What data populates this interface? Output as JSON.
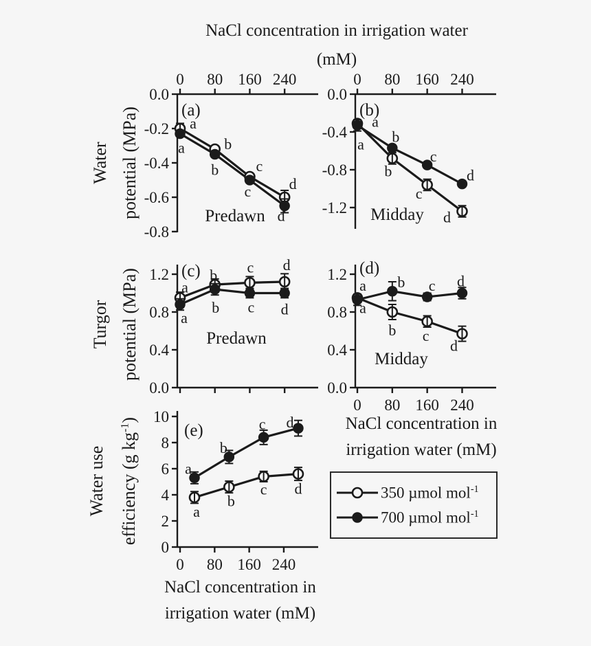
{
  "figure": {
    "bg": "#f6f6f6",
    "ink": "#1b1b1b",
    "top_axis_title": {
      "line1": "NaCl concentration in irrigation water",
      "line2": "(mM)"
    },
    "row1_ylabel": {
      "line1": "Water",
      "line2": "potential (MPa)"
    },
    "row2_ylabel": {
      "line1": "Turgor",
      "line2": "potential (MPa)"
    },
    "row3_ylabel": {
      "line1": "Water use",
      "line2_pre": "efficiency (g kg",
      "sup": "-1",
      "line2_post": ")"
    },
    "xlabel_right": {
      "line1": "NaCl concentration in",
      "line2": "irrigation water (mM)"
    },
    "xlabel_bottom": {
      "line1": "NaCl concentration in",
      "line2": "irrigation water (mM)"
    }
  },
  "legend": {
    "entries": [
      {
        "marker": "open-circle",
        "label_pre": "350 µmol mol",
        "label_sup": "-1"
      },
      {
        "marker": "filled-circle",
        "label_pre": "700 µmol mol",
        "label_sup": "-1"
      }
    ]
  },
  "chart_data": [
    {
      "id": "a",
      "type": "line",
      "panel_label": "(a)",
      "inner_label": "Predawn",
      "ylabel": "Water potential (MPa)",
      "xlabel": "NaCl concentration in irrigation water (mM)",
      "xlim": [
        0,
        315
      ],
      "ylim": [
        -0.8,
        0.0
      ],
      "x_ticks": [
        0,
        80,
        160,
        240
      ],
      "x_tick_labels": [
        "0",
        "80",
        "160",
        "240"
      ],
      "y_ticks": [
        0.0,
        -0.2,
        -0.4,
        -0.6,
        -0.8
      ],
      "y_tick_labels": [
        "0.0",
        "-0.2",
        "-0.4",
        "-0.6",
        "-0.8"
      ],
      "series": [
        {
          "name": "350",
          "marker": "open",
          "x": [
            0,
            80,
            160,
            240
          ],
          "y": [
            -0.2,
            -0.32,
            -0.48,
            -0.6
          ],
          "err": [
            0.03,
            0,
            0,
            0.04
          ],
          "letters": [
            {
              "t": "a",
              "dx": 19,
              "dy": 0
            },
            {
              "t": "b",
              "dx": 19,
              "dy": 0
            },
            {
              "t": "c",
              "dx": 14,
              "dy": -8
            },
            {
              "t": "d",
              "dx": 12,
              "dy": -12
            }
          ]
        },
        {
          "name": "700",
          "marker": "filled",
          "x": [
            0,
            80,
            160,
            240
          ],
          "y": [
            -0.23,
            -0.35,
            -0.5,
            -0.65
          ],
          "err": [
            0,
            0,
            0,
            0.04
          ],
          "letters": [
            {
              "t": "a",
              "dx": 2,
              "dy": 28
            },
            {
              "t": "b",
              "dx": 0,
              "dy": 30
            },
            {
              "t": "c",
              "dx": -3,
              "dy": 24
            },
            {
              "t": "d",
              "dx": -5,
              "dy": 22
            }
          ]
        }
      ]
    },
    {
      "id": "b",
      "type": "line",
      "panel_label": "(b)",
      "inner_label": "Midday",
      "ylabel": "Water potential (MPa)",
      "xlabel": "NaCl concentration in irrigation water (mM)",
      "xlim": [
        0,
        318
      ],
      "ylim": [
        -1.42,
        0.0
      ],
      "x_ticks": [
        0,
        80,
        160,
        240
      ],
      "x_tick_labels": [
        "0",
        "80",
        "160",
        "240"
      ],
      "y_ticks": [
        0.0,
        -0.4,
        -0.8,
        -1.2
      ],
      "y_tick_labels": [
        "0.0",
        "-0.4",
        "-0.8",
        "-1.2"
      ],
      "series": [
        {
          "name": "350",
          "marker": "open",
          "x": [
            0,
            80,
            160,
            240
          ],
          "y": [
            -0.31,
            -0.68,
            -0.96,
            -1.24
          ],
          "err": [
            0,
            0.06,
            0.06,
            0.06
          ],
          "letters": [
            {
              "t": "a",
              "dx": 5,
              "dy": 38
            },
            {
              "t": "b",
              "dx": -6,
              "dy": 26
            },
            {
              "t": "c",
              "dx": -12,
              "dy": 20
            },
            {
              "t": "d",
              "dx": -22,
              "dy": 16
            }
          ]
        },
        {
          "name": "700",
          "marker": "filled",
          "x": [
            0,
            80,
            160,
            240
          ],
          "y": [
            -0.33,
            -0.57,
            -0.75,
            -0.95
          ],
          "err": [
            0.06,
            0,
            0,
            0
          ],
          "letters": [
            {
              "t": "a",
              "dx": 26,
              "dy": 2
            },
            {
              "t": "b",
              "dx": 5,
              "dy": -9
            },
            {
              "t": "c",
              "dx": 9,
              "dy": -5
            },
            {
              "t": "d",
              "dx": 12,
              "dy": -5
            }
          ]
        }
      ]
    },
    {
      "id": "c",
      "type": "line",
      "panel_label": "(c)",
      "inner_label": "Predawn",
      "ylabel": "Turgor potential (MPa)",
      "xlabel": "NaCl concentration in irrigation water (mM)",
      "xlim": [
        0,
        315
      ],
      "ylim": [
        0.0,
        1.3
      ],
      "x_ticks": [
        0,
        80,
        160,
        240
      ],
      "x_tick_labels": [],
      "y_ticks": [
        1.2,
        0.8,
        0.4,
        0.0
      ],
      "y_tick_labels": [
        "1.2",
        "0.8",
        "0.4",
        "0.0"
      ],
      "series": [
        {
          "name": "350",
          "marker": "open",
          "x": [
            0,
            80,
            160,
            240
          ],
          "y": [
            0.95,
            1.09,
            1.11,
            1.12
          ],
          "err": [
            0.06,
            0.06,
            0.065,
            0.085
          ],
          "letters": [
            {
              "t": "a",
              "dx": 7,
              "dy": -8
            },
            {
              "t": "b",
              "dx": -2,
              "dy": -6
            },
            {
              "t": "c",
              "dx": 1,
              "dy": -15
            },
            {
              "t": "d",
              "dx": 3,
              "dy": -17
            }
          ]
        },
        {
          "name": "700",
          "marker": "filled",
          "x": [
            0,
            80,
            160,
            240
          ],
          "y": [
            0.88,
            1.04,
            1.0,
            1.0
          ],
          "err": [
            0.06,
            0.06,
            0.05,
            0.05
          ],
          "letters": [
            {
              "t": "a",
              "dx": 6,
              "dy": 27
            },
            {
              "t": "b",
              "dx": 1,
              "dy": 34
            },
            {
              "t": "c",
              "dx": 2,
              "dy": 28
            },
            {
              "t": "d",
              "dx": 0,
              "dy": 31
            }
          ]
        }
      ]
    },
    {
      "id": "d",
      "type": "line",
      "panel_label": "(d)",
      "inner_label": "Midday",
      "ylabel": "Turgor potential (MPa)",
      "xlabel": "NaCl concentration in irrigation water (mM)",
      "xlim": [
        0,
        318
      ],
      "ylim": [
        0.0,
        1.3
      ],
      "x_ticks": [
        0,
        80,
        160,
        240
      ],
      "x_tick_labels": [
        "0",
        "80",
        "160",
        "240"
      ],
      "y_ticks": [
        1.2,
        0.8,
        0.4,
        0.0
      ],
      "y_tick_labels": [
        "1.2",
        "0.8",
        "0.4",
        "0.0"
      ],
      "series": [
        {
          "name": "350",
          "marker": "open",
          "x": [
            0,
            80,
            160,
            240
          ],
          "y": [
            0.95,
            0.8,
            0.7,
            0.57
          ],
          "err": [
            0,
            0.08,
            0.06,
            0.08
          ],
          "letters": [
            {
              "t": "a",
              "dx": 8,
              "dy": 22
            },
            {
              "t": "b",
              "dx": 0,
              "dy": 34
            },
            {
              "t": "c",
              "dx": -2,
              "dy": 28
            },
            {
              "t": "d",
              "dx": -12,
              "dy": 25
            }
          ]
        },
        {
          "name": "700",
          "marker": "filled",
          "x": [
            0,
            80,
            160,
            240
          ],
          "y": [
            0.93,
            1.02,
            0.96,
            1.0
          ],
          "err": [
            0.06,
            0.1,
            0.04,
            0.06
          ],
          "letters": [
            {
              "t": "a",
              "dx": 8,
              "dy": -13
            },
            {
              "t": "b",
              "dx": 13,
              "dy": -6
            },
            {
              "t": "c",
              "dx": 7,
              "dy": -9
            },
            {
              "t": "d",
              "dx": -2,
              "dy": -10
            }
          ]
        }
      ]
    },
    {
      "id": "e",
      "type": "line",
      "panel_label": "(e)",
      "inner_label": "",
      "ylabel": "Water use efficiency (g kg-1)",
      "xlabel": "NaCl concentration in irrigation water (mM)",
      "xlim": [
        0,
        320
      ],
      "ylim": [
        0,
        10.4
      ],
      "x_ticks": [
        0,
        80,
        160,
        240
      ],
      "x_tick_labels": [
        "0",
        "80",
        "160",
        "240"
      ],
      "y_ticks": [
        10,
        8,
        6,
        4,
        2,
        0
      ],
      "y_tick_labels": [
        "10",
        "8",
        "6",
        "4",
        "2",
        "0"
      ],
      "series": [
        {
          "name": "350",
          "marker": "open",
          "x": [
            0,
            80,
            160,
            240
          ],
          "y": [
            3.8,
            4.6,
            5.4,
            5.6
          ],
          "err": [
            0.45,
            0.45,
            0.4,
            0.5
          ],
          "letters": [
            {
              "t": "a",
              "dx": 3,
              "dy": 28
            },
            {
              "t": "b",
              "dx": 3,
              "dy": 28
            },
            {
              "t": "c",
              "dx": 0,
              "dy": 26
            },
            {
              "t": "d",
              "dx": 0,
              "dy": 29
            }
          ]
        },
        {
          "name": "700",
          "marker": "filled",
          "x": [
            0,
            80,
            160,
            240
          ],
          "y": [
            5.3,
            6.9,
            8.4,
            9.1
          ],
          "err": [
            0.45,
            0.5,
            0.55,
            0.6
          ],
          "letters": [
            {
              "t": "a",
              "dx": -9,
              "dy": -6
            },
            {
              "t": "b",
              "dx": -8,
              "dy": -6
            },
            {
              "t": "c",
              "dx": -2,
              "dy": -12
            },
            {
              "t": "d",
              "dx": -12,
              "dy": -1
            }
          ]
        }
      ]
    }
  ]
}
